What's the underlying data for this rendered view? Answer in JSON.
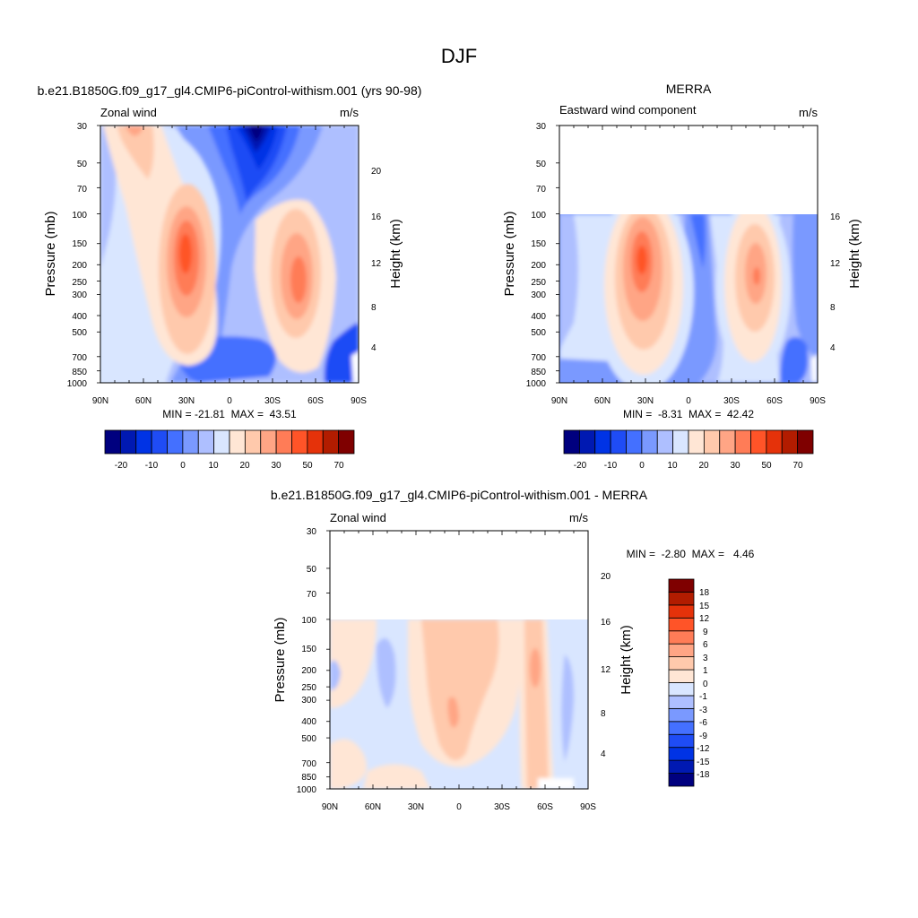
{
  "figure_title": "DJF",
  "chart_data": [
    {
      "type": "contour",
      "title": "b.e21.B1850G.f09_g17_gl4.CMIP6-piControl-withism.001 (yrs 90-98)",
      "left_string": "Zonal wind",
      "right_string": "m/s",
      "ylabel": "Pressure (mb)",
      "ylabel_right": "Height (km)",
      "x_ticks": [
        "90N",
        "60N",
        "30N",
        "0",
        "30S",
        "60S",
        "90S"
      ],
      "x_range": [
        90,
        -90
      ],
      "y_ticks": [
        "30",
        "50",
        "70",
        "100",
        "150",
        "200",
        "250",
        "300",
        "400",
        "500",
        "700",
        "850",
        "1000"
      ],
      "y_range": [
        1000,
        30
      ],
      "y_scale": "log",
      "height_ticks": [
        "4",
        "8",
        "12",
        "16",
        "20"
      ],
      "min_text": "MIN = -21.81  MAX =  43.51",
      "data_top": 30,
      "colorbar_labels": [
        "-20",
        "-10",
        "0",
        "10",
        "20",
        "30",
        "50",
        "70"
      ],
      "jets": [
        {
          "lat": -30,
          "p": 200,
          "max": 43.51,
          "kind": "westerly"
        },
        {
          "lat": 47,
          "p": 250,
          "max": 35,
          "kind": "westerly"
        },
        {
          "lat": 10,
          "p": 30,
          "min": -21.81,
          "kind": "easterly"
        }
      ]
    },
    {
      "type": "contour",
      "title": "MERRA",
      "left_string": "Eastward wind component",
      "right_string": "m/s",
      "ylabel": "Pressure (mb)",
      "ylabel_right": "Height (km)",
      "x_ticks": [
        "90N",
        "60N",
        "30N",
        "0",
        "30S",
        "60S",
        "90S"
      ],
      "x_range": [
        90,
        -90
      ],
      "y_ticks": [
        "30",
        "50",
        "70",
        "100",
        "150",
        "200",
        "250",
        "300",
        "400",
        "500",
        "700",
        "850",
        "1000"
      ],
      "y_range": [
        1000,
        30
      ],
      "y_scale": "log",
      "height_ticks": [
        "4",
        "8",
        "12",
        "16"
      ],
      "min_text": "MIN =  -8.31  MAX =  42.42",
      "data_top": 100,
      "colorbar_labels": [
        "-20",
        "-10",
        "0",
        "10",
        "20",
        "30",
        "50",
        "70"
      ],
      "jets": [
        {
          "lat": -30,
          "p": 200,
          "max": 42.42,
          "kind": "westerly"
        },
        {
          "lat": 47,
          "p": 250,
          "max": 32,
          "kind": "westerly"
        }
      ]
    },
    {
      "type": "contour",
      "title": "b.e21.B1850G.f09_g17_gl4.CMIP6-piControl-withism.001 - MERRA",
      "left_string": "Zonal wind",
      "right_string": "m/s",
      "ylabel": "Pressure (mb)",
      "ylabel_right": "Height (km)",
      "x_ticks": [
        "90N",
        "60N",
        "30N",
        "0",
        "30S",
        "60S",
        "90S"
      ],
      "x_range": [
        90,
        -90
      ],
      "y_ticks": [
        "30",
        "50",
        "70",
        "100",
        "150",
        "200",
        "250",
        "300",
        "400",
        "500",
        "700",
        "850",
        "1000"
      ],
      "y_range": [
        1000,
        30
      ],
      "y_scale": "log",
      "height_ticks": [
        "4",
        "8",
        "12",
        "16",
        "20"
      ],
      "min_text": "MIN =  -2.80  MAX =   4.46",
      "data_top": 100,
      "colorbar_labels": [
        "18",
        "15",
        "12",
        "9",
        "6",
        "3",
        "1",
        "0",
        "-1",
        "-3",
        "-6",
        "-9",
        "-12",
        "-15",
        "-18"
      ]
    }
  ],
  "colors": {
    "blue_red_palette": [
      "#00007f",
      "#0019b2",
      "#0033e5",
      "#1f4cf5",
      "#4470ff",
      "#7a99ff",
      "#aebfff",
      "#d9e6ff",
      "#ffe6d5",
      "#ffc9ac",
      "#ffa585",
      "#ff7c57",
      "#ff5428",
      "#e5320a",
      "#b21c00",
      "#7f0000"
    ]
  }
}
